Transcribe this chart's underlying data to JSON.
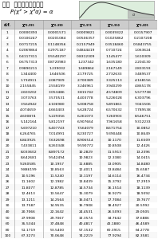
{
  "title": "表六  卡方分配臨界值表",
  "formula": "P(χ² > χ²α) = α",
  "col_headers": [
    "d.f.",
    "χ²₀.₉₉₅",
    "χ²₀.₉₉₀",
    "χ²₀.₉₇₅",
    "χ²₀.₉₅₀",
    "χ²₀.₀₀₅"
  ],
  "rows": [
    [
      1,
      "0.0000393",
      "0.0001571",
      "0.0009821",
      "0.0039322",
      "0.0157907"
    ],
    [
      2,
      "0.0100247",
      "0.0201084",
      "0.0506357",
      "0.1025862",
      "0.2107208"
    ],
    [
      3,
      "0.0717215",
      "0.1148356",
      "0.2157949",
      "0.3518460",
      "0.5843755"
    ],
    [
      4,
      "0.2069864",
      "0.2971187",
      "0.4844419",
      "0.710724",
      "1.063624"
    ],
    [
      5,
      "0.4117311",
      "0.5540297",
      "0.8312309",
      "1.145477",
      "1.610309"
    ],
    [
      6,
      "0.6757313",
      "0.8720983",
      "1.237342",
      "1.635180",
      "2.204130"
    ],
    [
      7,
      "0.9890211",
      "1.239032",
      "1.689864",
      "2.167149",
      "2.833193"
    ],
    [
      8,
      "1.344400",
      "1.646506",
      "2.179725",
      "2.732633",
      "3.489537"
    ],
    [
      9,
      "1.734911",
      "2.087909",
      "2.700389",
      "3.325113",
      "4.168156"
    ],
    [
      10,
      "2.155845",
      "2.558199",
      "3.246961",
      "3.940299",
      "4.865178"
    ],
    [
      11,
      "2.603202",
      "3.053486",
      "3.815742",
      "4.574809",
      "5.577738"
    ],
    [
      12,
      "3.073763",
      "3.570531",
      "4.403778",
      "5.226028",
      "6.303796"
    ],
    [
      13,
      "3.564942",
      "4.106980",
      "5.008758",
      "5.891861",
      "7.041506"
    ],
    [
      14,
      "4.074659",
      "4.660403",
      "5.628724",
      "6.570632",
      "7.789538"
    ],
    [
      15,
      "4.600874",
      "5.229356",
      "6.261073",
      "7.260903",
      "8.546751"
    ],
    [
      16,
      "5.142164",
      "5.812197",
      "6.907664",
      "7.961658",
      "9.312233"
    ],
    [
      17,
      "5.697210",
      "6.407743",
      "7.564079",
      "8.671754",
      "10.0852"
    ],
    [
      18,
      "6.264765",
      "7.014991",
      "8.230727",
      "9.390448",
      "10.8649"
    ],
    [
      19,
      "6.843925",
      "7.632698",
      "8.906514",
      "10.1170",
      "11.6509"
    ],
    [
      20,
      "7.433811",
      "8.260348",
      "9.590772",
      "10.8508",
      "12.4426"
    ],
    [
      21,
      "8.033602",
      "8.897172",
      "10.2829",
      "11.5913",
      "13.2396"
    ],
    [
      22,
      "8.642681",
      "9.542494",
      "10.9823",
      "12.3380",
      "14.0415"
    ],
    [
      23,
      "9.260585",
      "10.1957",
      "11.6885",
      "13.0905",
      "14.8480"
    ],
    [
      24,
      "9.886199",
      "10.8563",
      "12.4011",
      "13.8484",
      "15.6587"
    ],
    [
      25,
      "10.5196",
      "11.5240",
      "13.1197",
      "14.6114",
      "16.4734"
    ],
    [
      26,
      "11.1602",
      "12.1982",
      "13.8439",
      "15.3792",
      "17.2919"
    ],
    [
      27,
      "11.8077",
      "12.8785",
      "14.5734",
      "16.1514",
      "18.1139"
    ],
    [
      28,
      "12.4613",
      "13.5647",
      "15.3079",
      "16.9279",
      "18.9392"
    ],
    [
      29,
      "13.1211",
      "14.2564",
      "16.0471",
      "17.7084",
      "19.7677"
    ],
    [
      30,
      "13.7587",
      "14.9535",
      "16.7908",
      "18.4927",
      "20.5992"
    ],
    [
      40,
      "20.7066",
      "22.1642",
      "24.4531",
      "26.5093",
      "29.0505"
    ],
    [
      50,
      "27.9908",
      "29.7067",
      "32.3574",
      "34.7642",
      "37.6886"
    ],
    [
      60,
      "35.5344",
      "37.4848",
      "40.4817",
      "43.1880",
      "46.4589"
    ],
    [
      80,
      "51.1719",
      "53.5400",
      "57.1532",
      "60.3915",
      "64.2778"
    ],
    [
      100,
      "67.3273",
      "70.0648",
      "74.2219",
      "77.9294",
      "82.3581"
    ]
  ],
  "bg_color": "#ffffff",
  "header_bg": "#cccccc",
  "line_color": "#999999",
  "text_color": "#000000",
  "title_fontsize": 5.5,
  "formula_fontsize": 5.0,
  "header_fontsize": 3.5,
  "cell_fontsize": 3.2
}
